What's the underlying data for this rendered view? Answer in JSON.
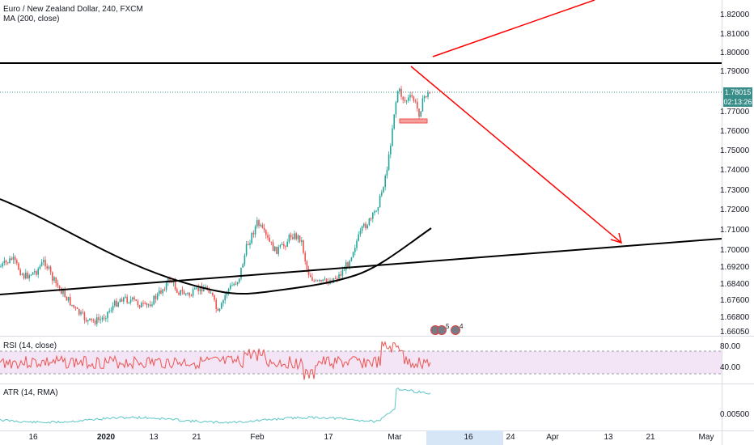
{
  "main_legend": {
    "symbol": "Euro / New Zealand Dollar, 240, FXCM",
    "ma": "MA (200, close)"
  },
  "rsi_legend": "RSI (14, close)",
  "atr_legend": "ATR (14, RMA)",
  "price_axis": [
    "1.82000",
    "1.81000",
    "1.80000",
    "1.79000",
    "1.77000",
    "1.76000",
    "1.75000",
    "1.74000",
    "1.73000",
    "1.72000",
    "1.71000",
    "1.70000",
    "1.69200",
    "1.68400",
    "1.67600",
    "1.66800",
    "1.66050"
  ],
  "current_price": "1.78015",
  "countdown": "02:13:26",
  "rsi_axis": [
    "80.00",
    "40.00"
  ],
  "atr_axis": [
    "0.00500"
  ],
  "time_axis": [
    "16",
    "2020",
    "13",
    "21",
    "Feb",
    "17",
    "Mar",
    "16",
    "24",
    "Apr",
    "13",
    "21",
    "May"
  ],
  "events": {
    "first_count": "5",
    "second_count": "4"
  },
  "colors": {
    "up": "#26a69a",
    "down": "#ef5350",
    "ma": "#000000",
    "trend": "#000000",
    "arrow": "#ff0000",
    "rsi": "#ef5350",
    "atr": "#5dc6c6",
    "price_line": "#3a8e8a"
  }
}
